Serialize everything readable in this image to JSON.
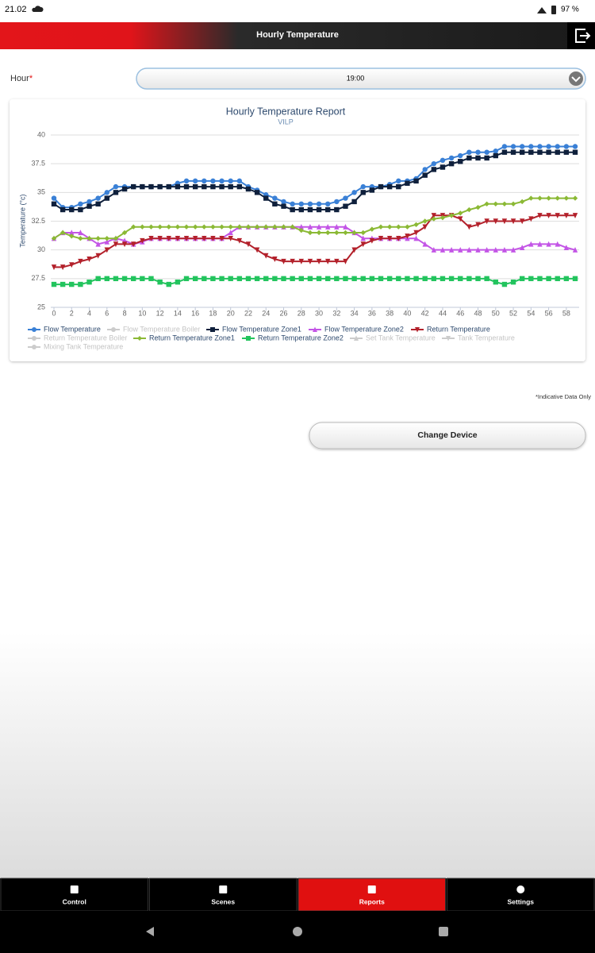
{
  "status_bar": {
    "time": "21.02",
    "battery": "97 %"
  },
  "header": {
    "title": "Hourly Temperature"
  },
  "form": {
    "label": "Hour",
    "required": "*",
    "value": "19:00"
  },
  "chart_data": {
    "type": "line",
    "title": "Hourly Temperature Report",
    "subtitle": "VILP",
    "y_label": "Temperature (°c)",
    "x": [
      0,
      1,
      2,
      3,
      4,
      5,
      6,
      7,
      8,
      9,
      10,
      11,
      12,
      13,
      14,
      15,
      16,
      17,
      18,
      19,
      20,
      21,
      22,
      23,
      24,
      25,
      26,
      27,
      28,
      29,
      30,
      31,
      32,
      33,
      34,
      35,
      36,
      37,
      38,
      39,
      40,
      41,
      42,
      43,
      44,
      45,
      46,
      47,
      48,
      49,
      50,
      51,
      52,
      53,
      54,
      55,
      56,
      57,
      58,
      59
    ],
    "xlim": [
      0,
      59
    ],
    "xticks": [
      0,
      2,
      4,
      6,
      8,
      10,
      12,
      14,
      16,
      18,
      20,
      22,
      24,
      26,
      28,
      30,
      32,
      34,
      36,
      38,
      40,
      42,
      44,
      46,
      48,
      50,
      52,
      54,
      56,
      58
    ],
    "ylim": [
      25,
      40
    ],
    "yticks": [
      25,
      27.5,
      30,
      32.5,
      35,
      37.5,
      40
    ],
    "grid": true,
    "series": [
      {
        "name": "Flow Temperature",
        "color": "#3a80d6",
        "marker": "circle",
        "values": [
          34.5,
          33.7,
          33.7,
          34,
          34.2,
          34.5,
          35,
          35.5,
          35.5,
          35.5,
          35.5,
          35.5,
          35.5,
          35.5,
          35.8,
          36,
          36,
          36,
          36,
          36,
          36,
          36,
          35.5,
          35.2,
          34.8,
          34.5,
          34.2,
          34,
          34,
          34,
          34,
          34,
          34.2,
          34.5,
          35,
          35.5,
          35.5,
          35.5,
          35.7,
          36,
          36,
          36.2,
          37,
          37.5,
          37.8,
          38,
          38.2,
          38.5,
          38.5,
          38.5,
          38.6,
          39,
          39,
          39,
          39,
          39,
          39,
          39,
          39,
          39
        ]
      },
      {
        "name": "Flow Temperature Boiler",
        "color": "#cccccc",
        "marker": "circle",
        "visible": false
      },
      {
        "name": "Flow Temperature Zone1",
        "color": "#0f203c",
        "marker": "square",
        "values": [
          34,
          33.5,
          33.5,
          33.5,
          33.8,
          34,
          34.5,
          35,
          35.3,
          35.5,
          35.5,
          35.5,
          35.5,
          35.5,
          35.5,
          35.5,
          35.5,
          35.5,
          35.5,
          35.5,
          35.5,
          35.5,
          35.3,
          35,
          34.5,
          34,
          33.8,
          33.5,
          33.5,
          33.5,
          33.5,
          33.5,
          33.5,
          33.8,
          34.2,
          35,
          35.2,
          35.5,
          35.5,
          35.5,
          35.8,
          36,
          36.5,
          37,
          37.2,
          37.5,
          37.7,
          38,
          38,
          38,
          38.2,
          38.5,
          38.5,
          38.5,
          38.5,
          38.5,
          38.5,
          38.5,
          38.5,
          38.5
        ]
      },
      {
        "name": "Flow Temperature Zone2",
        "color": "#c355e6",
        "marker": "triangle",
        "values": [
          31,
          31.5,
          31.5,
          31.5,
          31,
          30.5,
          30.7,
          31,
          30.8,
          30.5,
          30.7,
          31,
          31,
          31,
          31,
          31,
          31,
          31,
          31,
          31,
          31.5,
          32,
          32,
          32,
          32,
          32,
          32,
          32,
          32,
          32,
          32,
          32,
          32,
          32,
          31.5,
          31,
          31,
          31,
          31,
          31,
          31,
          31,
          30.5,
          30,
          30,
          30,
          30,
          30,
          30,
          30,
          30,
          30,
          30,
          30.2,
          30.5,
          30.5,
          30.5,
          30.5,
          30.2,
          30
        ]
      },
      {
        "name": "Return Temperature",
        "color": "#b3212b",
        "marker": "triangle-down",
        "values": [
          28.5,
          28.5,
          28.7,
          29,
          29.2,
          29.5,
          30,
          30.5,
          30.5,
          30.5,
          30.8,
          31,
          31,
          31,
          31,
          31,
          31,
          31,
          31,
          31,
          31,
          30.8,
          30.5,
          30,
          29.5,
          29.2,
          29,
          29,
          29,
          29,
          29,
          29,
          29,
          29,
          30,
          30.5,
          30.8,
          31,
          31,
          31,
          31.2,
          31.5,
          32,
          33,
          33,
          33,
          32.7,
          32,
          32.2,
          32.5,
          32.5,
          32.5,
          32.5,
          32.5,
          32.7,
          33,
          33,
          33,
          33,
          33
        ]
      },
      {
        "name": "Return Temperature Boiler",
        "color": "#cccccc",
        "marker": "circle",
        "visible": false
      },
      {
        "name": "Return Temperature Zone1",
        "color": "#8bb935",
        "marker": "diamond",
        "values": [
          31,
          31.5,
          31.2,
          31,
          31,
          31,
          31,
          31,
          31.5,
          32,
          32,
          32,
          32,
          32,
          32,
          32,
          32,
          32,
          32,
          32,
          32,
          32,
          32,
          32,
          32,
          32,
          32,
          32,
          31.7,
          31.5,
          31.5,
          31.5,
          31.5,
          31.5,
          31.5,
          31.5,
          31.8,
          32,
          32,
          32,
          32,
          32.2,
          32.5,
          32.7,
          32.8,
          33,
          33.2,
          33.5,
          33.7,
          34,
          34,
          34,
          34,
          34.2,
          34.5,
          34.5,
          34.5,
          34.5,
          34.5,
          34.5
        ]
      },
      {
        "name": "Return Temperature Zone2",
        "color": "#23c45e",
        "marker": "square",
        "values": [
          27,
          27,
          27,
          27,
          27.2,
          27.5,
          27.5,
          27.5,
          27.5,
          27.5,
          27.5,
          27.5,
          27.2,
          27,
          27.2,
          27.5,
          27.5,
          27.5,
          27.5,
          27.5,
          27.5,
          27.5,
          27.5,
          27.5,
          27.5,
          27.5,
          27.5,
          27.5,
          27.5,
          27.5,
          27.5,
          27.5,
          27.5,
          27.5,
          27.5,
          27.5,
          27.5,
          27.5,
          27.5,
          27.5,
          27.5,
          27.5,
          27.5,
          27.5,
          27.5,
          27.5,
          27.5,
          27.5,
          27.5,
          27.5,
          27.2,
          27,
          27.2,
          27.5,
          27.5,
          27.5,
          27.5,
          27.5,
          27.5,
          27.5
        ]
      },
      {
        "name": "Set Tank Temperature",
        "color": "#cccccc",
        "marker": "triangle",
        "visible": false
      },
      {
        "name": "Tank Temperature",
        "color": "#cccccc",
        "marker": "triangle-down",
        "visible": false
      },
      {
        "name": "Mixing Tank Temperature",
        "color": "#cccccc",
        "marker": "circle",
        "visible": false
      }
    ]
  },
  "note": "*Indicative Data Only",
  "button": "Change Device",
  "nav": {
    "items": [
      "Control",
      "Scenes",
      "Reports",
      "Settings"
    ],
    "active": 2
  }
}
